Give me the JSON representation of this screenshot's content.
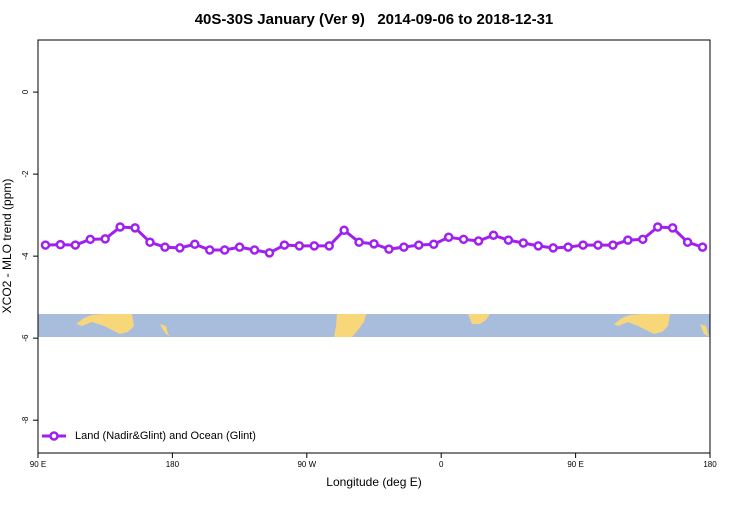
{
  "chart_data": {
    "type": "line",
    "title": "40S-30S January (Ver 9)   2014-09-06 to 2018-12-31",
    "x_label": "Longitude (deg E)",
    "y_label": "XCO2 - MLO trend (ppm)",
    "x": [
      95,
      105,
      115,
      125,
      135,
      145,
      155,
      165,
      175,
      185,
      195,
      205,
      215,
      225,
      235,
      245,
      255,
      265,
      275,
      285,
      295,
      305,
      315,
      325,
      335,
      345,
      355,
      365,
      375,
      385,
      395,
      405,
      415,
      425,
      435,
      445,
      455,
      465,
      475,
      485,
      495,
      505,
      515,
      525,
      535
    ],
    "series": [
      {
        "name": "Land (Nadir&Glint) and Ocean (Glint)",
        "color": "#a020f0",
        "values": [
          -3.73,
          -3.72,
          -3.73,
          -3.59,
          -3.58,
          -3.29,
          -3.31,
          -3.66,
          -3.78,
          -3.8,
          -3.71,
          -3.85,
          -3.85,
          -3.78,
          -3.85,
          -3.92,
          -3.73,
          -3.75,
          -3.75,
          -3.75,
          -3.37,
          -3.66,
          -3.7,
          -3.83,
          -3.78,
          -3.73,
          -3.71,
          -3.54,
          -3.59,
          -3.63,
          -3.49,
          -3.61,
          -3.68,
          -3.75,
          -3.8,
          -3.78,
          -3.73,
          -3.73,
          -3.73,
          -3.61,
          -3.59,
          -3.29,
          -3.31,
          -3.66,
          -3.78
        ]
      }
    ],
    "xlim": [
      90,
      540
    ],
    "xticks": [
      {
        "value": 90,
        "label": "90 E"
      },
      180,
      {
        "value": 270,
        "label": "90 W"
      },
      {
        "value": 360,
        "label": "0"
      },
      {
        "value": 450,
        "label": "90 E"
      },
      {
        "value": 540,
        "label": "180"
      }
    ],
    "ylim": [
      -8.8,
      1.27
    ],
    "yticks": [
      0,
      -2,
      -4,
      -6,
      -8
    ],
    "legend": "bottom-left"
  }
}
